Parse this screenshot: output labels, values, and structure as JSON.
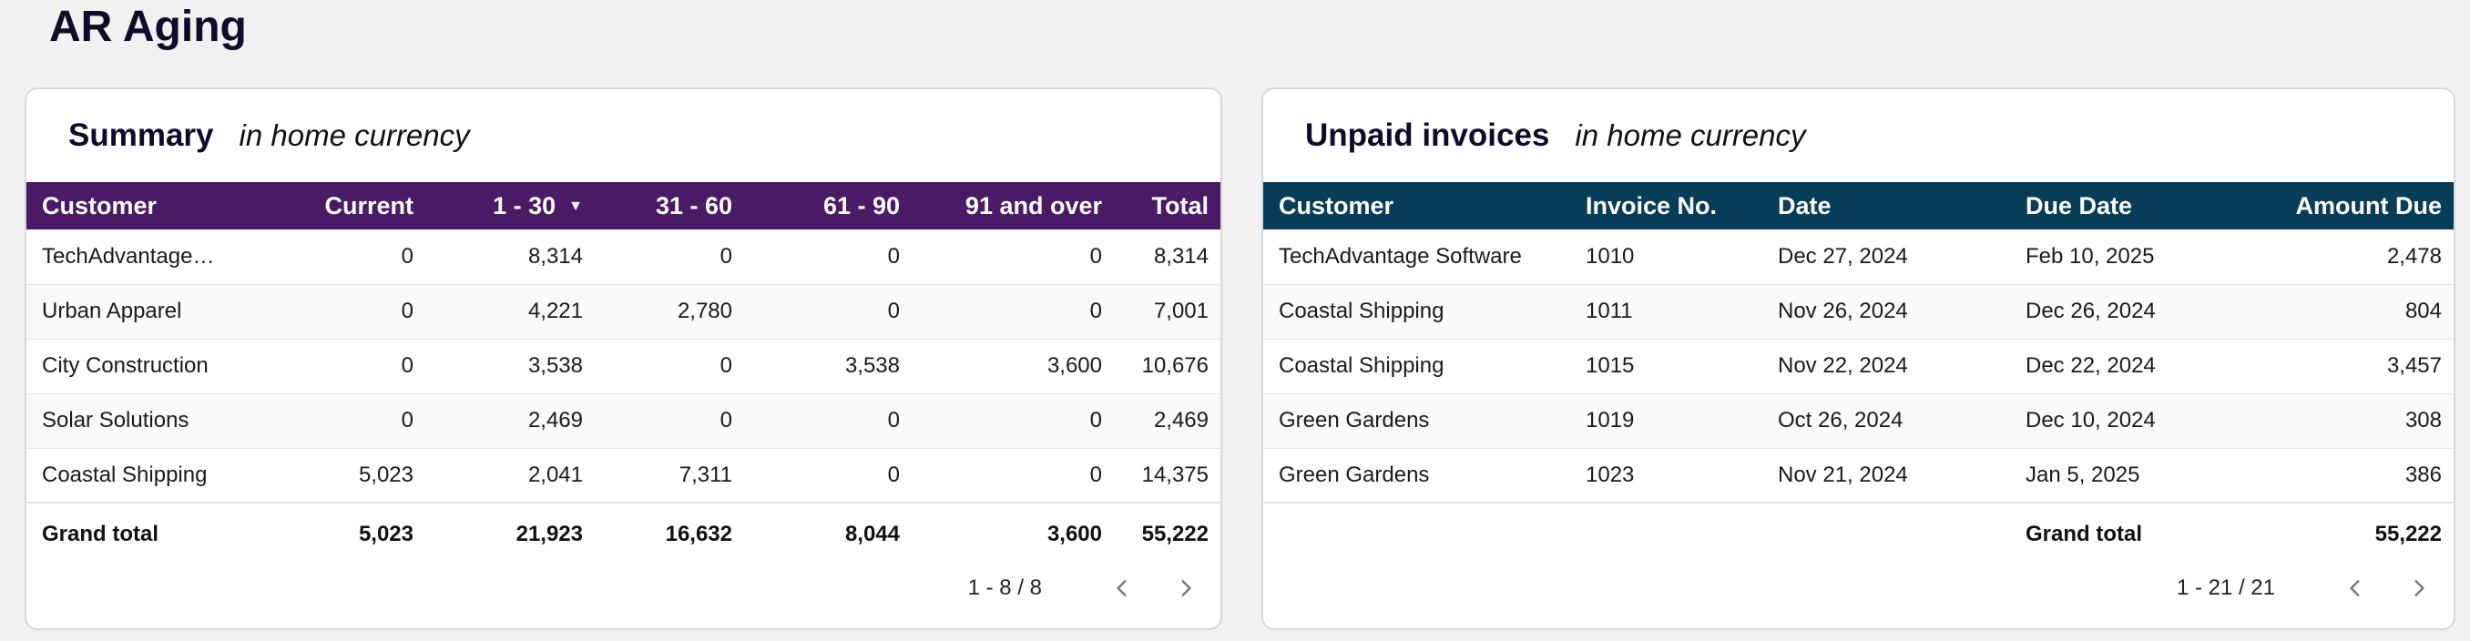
{
  "page": {
    "title": "AR Aging"
  },
  "summary": {
    "title": "Summary",
    "subtitle": "in home currency",
    "columns": [
      "Customer",
      "Current",
      "1 - 30",
      "31 - 60",
      "61 - 90",
      "91 and over",
      "Total"
    ],
    "sorted_column": "1 - 30",
    "rows": [
      [
        "TechAdvantage Software",
        "0",
        "8,314",
        "0",
        "0",
        "0",
        "8,314"
      ],
      [
        "Urban Apparel",
        "0",
        "4,221",
        "2,780",
        "0",
        "0",
        "7,001"
      ],
      [
        "City Construction",
        "0",
        "3,538",
        "0",
        "3,538",
        "3,600",
        "10,676"
      ],
      [
        "Solar Solutions",
        "0",
        "2,469",
        "0",
        "0",
        "0",
        "2,469"
      ],
      [
        "Coastal Shipping",
        "5,023",
        "2,041",
        "7,311",
        "0",
        "0",
        "14,375"
      ]
    ],
    "total": [
      "Grand total",
      "5,023",
      "21,923",
      "16,632",
      "8,044",
      "3,600",
      "55,222"
    ],
    "pager": {
      "range": "1 - 8 / 8"
    }
  },
  "invoices": {
    "title": "Unpaid invoices",
    "subtitle": "in home currency",
    "columns": [
      "Customer",
      "Invoice No.",
      "Date",
      "Due Date",
      "Amount Due"
    ],
    "rows": [
      [
        "TechAdvantage Software",
        "1010",
        "Dec 27, 2024",
        "Feb 10, 2025",
        "2,478"
      ],
      [
        "Coastal Shipping",
        "1011",
        "Nov 26, 2024",
        "Dec 26, 2024",
        "804"
      ],
      [
        "Coastal Shipping",
        "1015",
        "Nov 22, 2024",
        "Dec 22, 2024",
        "3,457"
      ],
      [
        "Green Gardens",
        "1019",
        "Oct 26, 2024",
        "Dec 10, 2024",
        "308"
      ],
      [
        "Green Gardens",
        "1023",
        "Nov 21, 2024",
        "Jan 5, 2025",
        "386"
      ]
    ],
    "total_label": "Grand total",
    "total_value": "55,222",
    "pager": {
      "range": "1 - 21 / 21"
    }
  },
  "icons": {
    "sort": "caret-down-icon",
    "prev": "chevron-left-icon",
    "next": "chevron-right-icon"
  },
  "colors": {
    "summary_header": "#4a1a66",
    "invoices_header": "#073d57",
    "background": "#f1f1f1"
  }
}
